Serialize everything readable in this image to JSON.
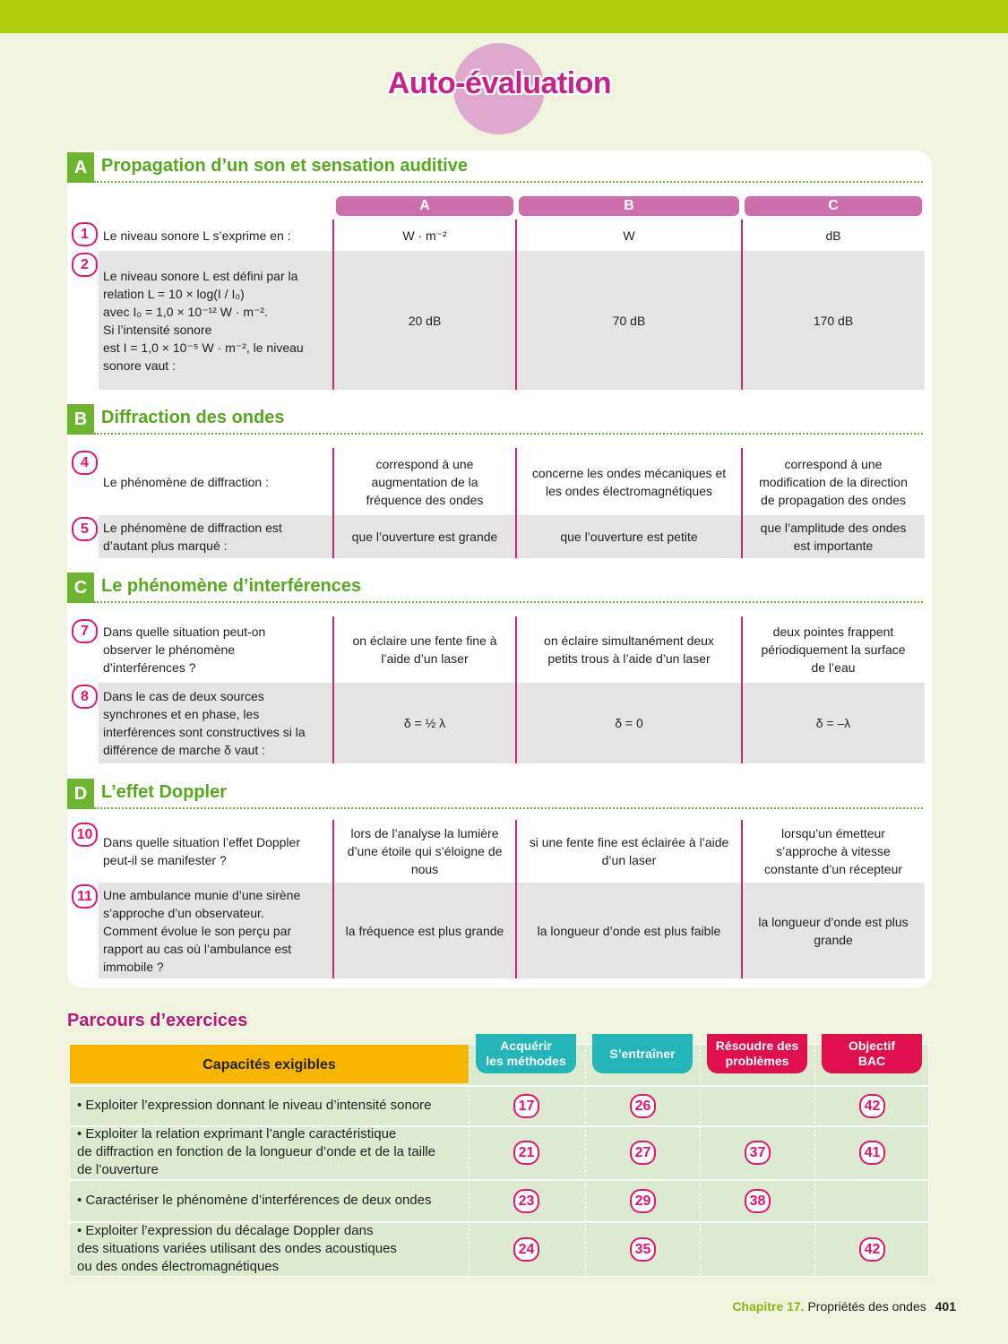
{
  "title": "Auto-évaluation",
  "columns": [
    "A",
    "B",
    "C"
  ],
  "sections": [
    {
      "letter": "A",
      "title": "Propagation d’un son et sensation auditive",
      "questions": [
        {
          "num": "1",
          "text": "Le niveau sonore L s’exprime en :",
          "answers": [
            "W · m⁻²",
            "W",
            "dB"
          ]
        },
        {
          "num": "2",
          "text": "Le niveau sonore L est défini par la\nrelation L = 10 × log(I / I₀)\navec I₀ = 1,0 × 10⁻¹² W · m⁻².\nSi l’intensité sonore\nest I = 1,0 × 10⁻⁵ W · m⁻², le niveau\nsonore vaut :",
          "answers": [
            "20 dB",
            "70 dB",
            "170 dB"
          ]
        }
      ]
    },
    {
      "letter": "B",
      "title": "Diffraction des ondes",
      "questions": [
        {
          "num": "4",
          "text": "Le phénomène de diffraction :",
          "answers": [
            "correspond à une\naugmentation de la\nfréquence des ondes",
            "concerne les ondes mécaniques et\nles ondes électromagnétiques",
            "correspond à une\nmodification de la direction\nde propagation des ondes"
          ]
        },
        {
          "num": "5",
          "text": "Le phénomène de diffraction est\nd’autant plus marqué :",
          "answers": [
            "que l’ouverture est grande",
            "que l’ouverture est petite",
            "que l’amplitude des ondes\nest importante"
          ]
        }
      ]
    },
    {
      "letter": "C",
      "title": "Le phénomène d’interférences",
      "questions": [
        {
          "num": "7",
          "text": "Dans quelle situation peut-on\nobserver le phénomène\nd’interférences ?",
          "answers": [
            "on éclaire une fente fine à\nl’aide d’un laser",
            "on éclaire simultanément deux\npetits trous à l’aide d’un laser",
            "deux pointes frappent\npériodiquement la surface\nde l’eau"
          ]
        },
        {
          "num": "8",
          "text": "Dans le cas de deux sources\nsynchrones et en phase, les\ninterférences sont constructives si la\ndifférence de marche δ vaut :",
          "answers": [
            "δ = ½ λ",
            "δ = 0",
            "δ = –λ"
          ]
        }
      ]
    },
    {
      "letter": "D",
      "title": "L’effet Doppler",
      "questions": [
        {
          "num": "10",
          "text": "Dans quelle situation l’effet Doppler\npeut-il se manifester ?",
          "answers": [
            "lors de l’analyse la lumière\nd’une étoile qui s’éloigne de\nnous",
            "si une fente fine est éclairée à l’aide\nd’un laser",
            "lorsqu’un émetteur\ns’approche à vitesse\nconstante d’un récepteur"
          ]
        },
        {
          "num": "11",
          "text": "Une ambulance munie d’une sirène\ns’approche d’un observateur.\nComment évolue le son perçu par\nrapport au cas où l’ambulance est\nimmobile ?",
          "answers": [
            "la fréquence est plus grande",
            "la longueur d’onde est plus faible",
            "la longueur d’onde est plus\ngrande"
          ]
        }
      ]
    }
  ],
  "parcours": {
    "title": "Parcours d’exercices",
    "head": "Capacités exigibles",
    "tabs": [
      {
        "label": "Acquérir\nles méthodes",
        "color": "#23b5b8"
      },
      {
        "label": "S’entraîner",
        "color": "#23b5b8"
      },
      {
        "label": "Résoudre des\nproblèmes",
        "color": "#e0104f"
      },
      {
        "label": "Objectif\nBAC",
        "color": "#e0104f"
      }
    ],
    "rows": [
      {
        "text": "• Exploiter l’expression donnant le niveau d’intensité sonore",
        "ex": [
          "17",
          "26",
          "",
          "42"
        ]
      },
      {
        "text": "• Exploiter la relation exprimant l’angle caractéristique\nde diffraction en fonction de la longueur d’onde et de la taille\nde l’ouverture",
        "ex": [
          "21",
          "27",
          "37",
          "41"
        ]
      },
      {
        "text": "• Caractériser le phénomène d’interférences de deux ondes",
        "ex": [
          "23",
          "29",
          "38",
          ""
        ]
      },
      {
        "text": "• Exploiter l’expression du décalage Doppler dans\ndes situations variées utilisant des ondes acoustiques\nou des ondes électromagnétiques",
        "ex": [
          "24",
          "35",
          "",
          "42"
        ]
      }
    ]
  },
  "footer": {
    "chapter": "Chapitre 17.",
    "title": "Propriétés des ondes",
    "page": "401"
  }
}
